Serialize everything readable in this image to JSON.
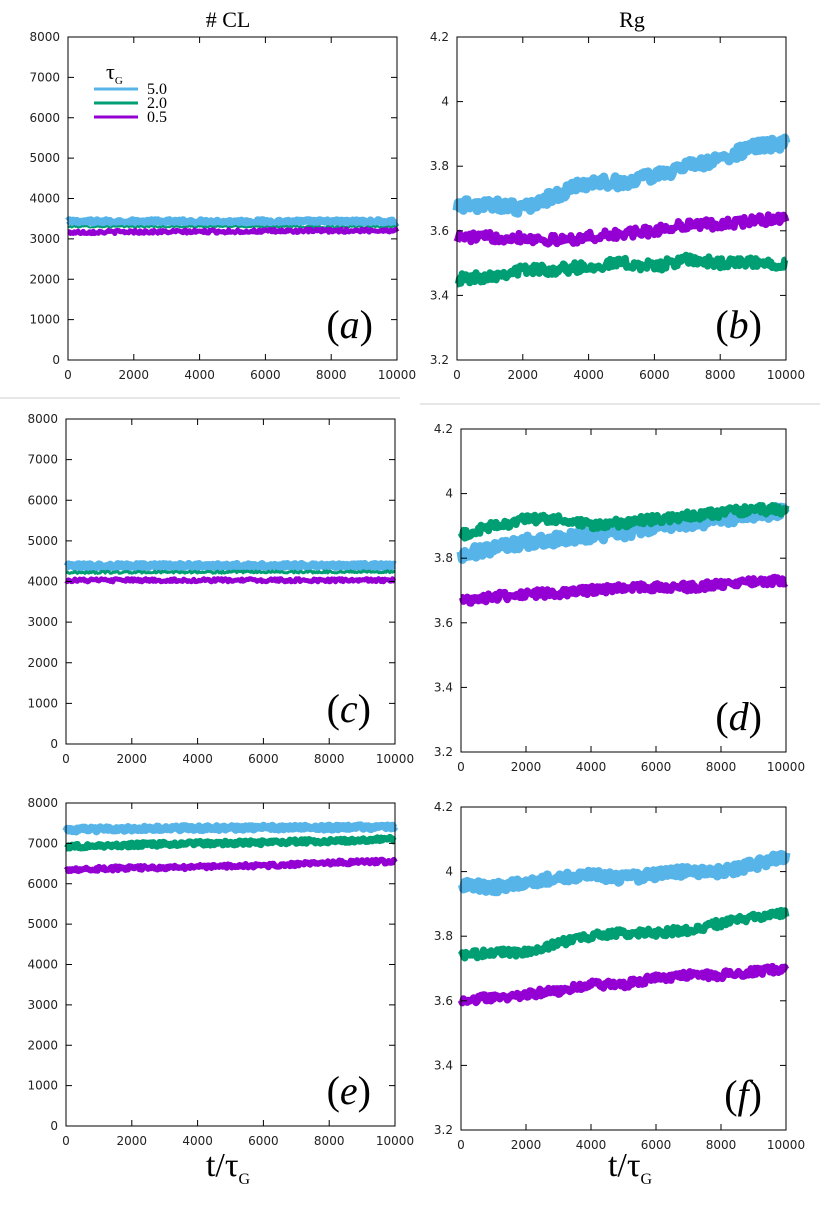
{
  "figure": {
    "column_titles": [
      "# CL",
      "Rg"
    ],
    "x_axis_title": {
      "main": "t/τ",
      "sub": "G"
    },
    "legend": {
      "title_main": "τ",
      "title_sub": "G",
      "entries": [
        {
          "label": "5.0",
          "color": "#56b4e9"
        },
        {
          "label": "2.0",
          "color": "#009e73"
        },
        {
          "label": "0.5",
          "color": "#9400d3"
        }
      ]
    }
  },
  "chart_data": [
    {
      "panel": "a",
      "panel_label": "(a)",
      "type": "line",
      "xlim": [
        0,
        10000
      ],
      "ylim": [
        0,
        8000
      ],
      "xticks": [
        "0",
        "2000",
        "4000",
        "6000",
        "8000",
        "10000"
      ],
      "yticks": [
        "0",
        "1000",
        "2000",
        "3000",
        "4000",
        "5000",
        "6000",
        "7000",
        "8000"
      ],
      "x": [
        0,
        1000,
        2000,
        3000,
        4000,
        5000,
        6000,
        7000,
        8000,
        9000,
        10000
      ],
      "series": [
        {
          "name": "5.0",
          "color": "#56b4e9",
          "noise": 45,
          "width": 8,
          "values": [
            3420,
            3420,
            3420,
            3420,
            3420,
            3420,
            3420,
            3420,
            3420,
            3420,
            3420
          ]
        },
        {
          "name": "2.0",
          "color": "#009e73",
          "noise": 20,
          "width": 2,
          "values": [
            3300,
            3300,
            3300,
            3300,
            3300,
            3300,
            3300,
            3300,
            3300,
            3300,
            3300
          ]
        },
        {
          "name": "0.5",
          "color": "#9400d3",
          "noise": 40,
          "width": 5,
          "values": [
            3160,
            3170,
            3175,
            3175,
            3180,
            3185,
            3190,
            3195,
            3200,
            3205,
            3210
          ]
        }
      ]
    },
    {
      "panel": "b",
      "panel_label": "(b)",
      "type": "line",
      "xlim": [
        0,
        10000
      ],
      "ylim": [
        3.2,
        4.2
      ],
      "xticks": [
        "0",
        "2000",
        "4000",
        "6000",
        "8000",
        "10000"
      ],
      "yticks": [
        "3.2",
        "3.4",
        "3.6",
        "3.8",
        "4",
        "4.2"
      ],
      "x": [
        0,
        1000,
        2000,
        3000,
        4000,
        5000,
        6000,
        7000,
        8000,
        9000,
        10000
      ],
      "series": [
        {
          "name": "5.0",
          "color": "#56b4e9",
          "noise": 0.018,
          "width": 9,
          "values": [
            3.68,
            3.68,
            3.67,
            3.71,
            3.75,
            3.75,
            3.77,
            3.8,
            3.82,
            3.86,
            3.87
          ]
        },
        {
          "name": "2.0",
          "color": "#009e73",
          "noise": 0.016,
          "width": 7,
          "values": [
            3.45,
            3.46,
            3.48,
            3.48,
            3.49,
            3.5,
            3.49,
            3.51,
            3.5,
            3.5,
            3.5
          ]
        },
        {
          "name": "0.5",
          "color": "#9400d3",
          "noise": 0.015,
          "width": 7,
          "values": [
            3.58,
            3.58,
            3.58,
            3.57,
            3.58,
            3.59,
            3.6,
            3.62,
            3.62,
            3.63,
            3.64
          ]
        }
      ]
    },
    {
      "panel": "c",
      "panel_label": "(c)",
      "type": "line",
      "xlim": [
        0,
        10000
      ],
      "ylim": [
        0,
        8000
      ],
      "xticks": [
        "0",
        "2000",
        "4000",
        "6000",
        "8000",
        "10000"
      ],
      "yticks": [
        "0",
        "1000",
        "2000",
        "3000",
        "4000",
        "5000",
        "6000",
        "7000",
        "8000"
      ],
      "x": [
        0,
        1000,
        2000,
        3000,
        4000,
        5000,
        6000,
        7000,
        8000,
        9000,
        10000
      ],
      "series": [
        {
          "name": "5.0",
          "color": "#56b4e9",
          "noise": 45,
          "width": 8,
          "values": [
            4380,
            4380,
            4390,
            4390,
            4390,
            4390,
            4390,
            4390,
            4390,
            4390,
            4390
          ]
        },
        {
          "name": "2.0",
          "color": "#009e73",
          "noise": 25,
          "width": 3,
          "values": [
            4220,
            4225,
            4225,
            4230,
            4230,
            4230,
            4235,
            4235,
            4235,
            4240,
            4240
          ]
        },
        {
          "name": "0.5",
          "color": "#9400d3",
          "noise": 40,
          "width": 5,
          "values": [
            4030,
            4030,
            4030,
            4030,
            4030,
            4030,
            4030,
            4030,
            4030,
            4030,
            4030
          ]
        }
      ]
    },
    {
      "panel": "d",
      "panel_label": "(d)",
      "type": "line",
      "xlim": [
        0,
        10000
      ],
      "ylim": [
        3.2,
        4.2
      ],
      "xticks": [
        "0",
        "2000",
        "4000",
        "6000",
        "8000",
        "10000"
      ],
      "yticks": [
        "3.2",
        "3.4",
        "3.6",
        "3.8",
        "4",
        "4.2"
      ],
      "x": [
        0,
        1000,
        2000,
        3000,
        4000,
        5000,
        6000,
        7000,
        8000,
        9000,
        10000
      ],
      "series": [
        {
          "name": "5.0",
          "color": "#56b4e9",
          "noise": 0.018,
          "width": 9,
          "values": [
            3.81,
            3.83,
            3.85,
            3.86,
            3.87,
            3.88,
            3.9,
            3.91,
            3.92,
            3.93,
            3.95
          ]
        },
        {
          "name": "2.0",
          "color": "#009e73",
          "noise": 0.014,
          "width": 7,
          "values": [
            3.87,
            3.9,
            3.92,
            3.92,
            3.9,
            3.91,
            3.92,
            3.93,
            3.94,
            3.95,
            3.95
          ]
        },
        {
          "name": "0.5",
          "color": "#9400d3",
          "noise": 0.013,
          "width": 7,
          "values": [
            3.67,
            3.68,
            3.69,
            3.69,
            3.7,
            3.71,
            3.71,
            3.71,
            3.72,
            3.73,
            3.73
          ]
        }
      ]
    },
    {
      "panel": "e",
      "panel_label": "(e)",
      "type": "line",
      "xlim": [
        0,
        10000
      ],
      "ylim": [
        0,
        8000
      ],
      "xticks": [
        "0",
        "2000",
        "4000",
        "6000",
        "8000",
        "10000"
      ],
      "yticks": [
        "0",
        "1000",
        "2000",
        "3000",
        "4000",
        "5000",
        "6000",
        "7000",
        "8000"
      ],
      "x": [
        0,
        1000,
        2000,
        3000,
        4000,
        5000,
        6000,
        7000,
        8000,
        9000,
        10000
      ],
      "series": [
        {
          "name": "5.0",
          "color": "#56b4e9",
          "noise": 50,
          "width": 8,
          "values": [
            7330,
            7350,
            7360,
            7370,
            7380,
            7380,
            7390,
            7390,
            7390,
            7400,
            7400
          ]
        },
        {
          "name": "2.0",
          "color": "#009e73",
          "noise": 50,
          "width": 7,
          "values": [
            6920,
            6940,
            6960,
            6980,
            7000,
            7010,
            7020,
            7040,
            7060,
            7080,
            7100
          ]
        },
        {
          "name": "0.5",
          "color": "#9400d3",
          "noise": 50,
          "width": 6,
          "values": [
            6360,
            6370,
            6390,
            6400,
            6420,
            6440,
            6450,
            6480,
            6520,
            6540,
            6550
          ]
        }
      ]
    },
    {
      "panel": "f",
      "panel_label": "(f)",
      "type": "line",
      "xlim": [
        0,
        10000
      ],
      "ylim": [
        3.2,
        4.2
      ],
      "xticks": [
        "0",
        "2000",
        "4000",
        "6000",
        "8000",
        "10000"
      ],
      "yticks": [
        "3.2",
        "3.4",
        "3.6",
        "3.8",
        "4",
        "4.2"
      ],
      "x": [
        0,
        1000,
        2000,
        3000,
        4000,
        5000,
        6000,
        7000,
        8000,
        9000,
        10000
      ],
      "series": [
        {
          "name": "5.0",
          "color": "#56b4e9",
          "noise": 0.015,
          "width": 9,
          "values": [
            3.96,
            3.95,
            3.97,
            3.98,
            3.99,
            3.98,
            3.99,
            4.0,
            4.0,
            4.02,
            4.05
          ]
        },
        {
          "name": "2.0",
          "color": "#009e73",
          "noise": 0.012,
          "width": 7,
          "values": [
            3.74,
            3.75,
            3.75,
            3.78,
            3.8,
            3.81,
            3.81,
            3.82,
            3.84,
            3.86,
            3.87
          ]
        },
        {
          "name": "0.5",
          "color": "#9400d3",
          "noise": 0.012,
          "width": 7,
          "values": [
            3.6,
            3.61,
            3.62,
            3.63,
            3.65,
            3.65,
            3.67,
            3.68,
            3.68,
            3.69,
            3.7
          ]
        }
      ]
    }
  ]
}
